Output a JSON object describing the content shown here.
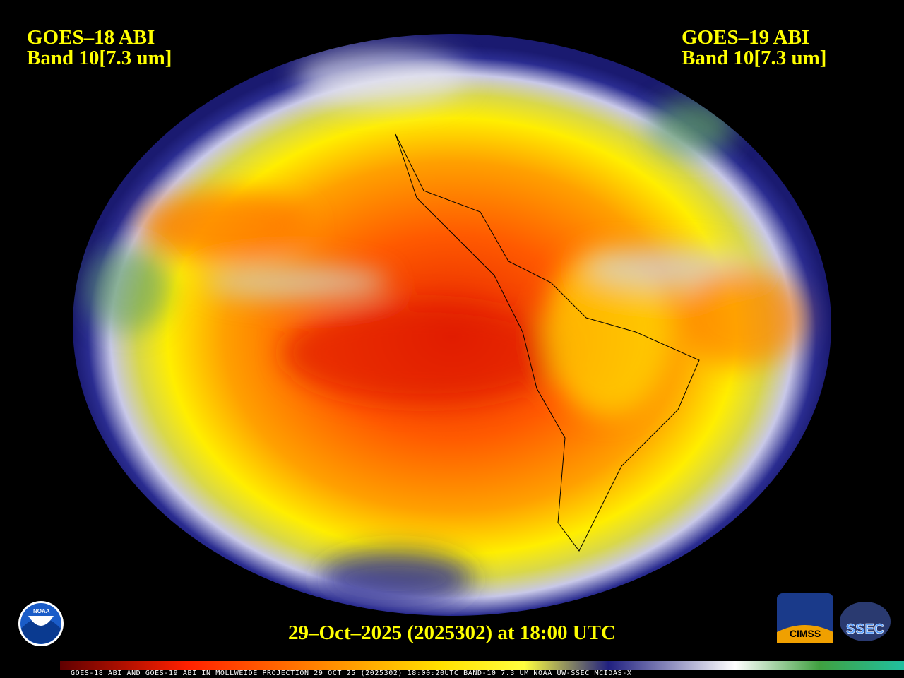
{
  "left_label": {
    "line1": "GOES–18 ABI",
    "line2": "Band 10[7.3 um]"
  },
  "right_label": {
    "line1": "GOES–19 ABI",
    "line2": "Band 10[7.3 um]"
  },
  "timestamp": "29–Oct–2025 (2025302) at 18:00 UTC",
  "caption": "GOES-18 ABI AND GOES-19 ABI IN MOLLWEIDE PROJECTION 29 OCT 25 (2025302) 18:00:20UTC BAND-10 7.3 UM NOAA UW-SSEC MCIDAS-X",
  "logos": {
    "noaa": "NOAA",
    "cimss": "CIMSS",
    "ssec": "SSEC"
  }
}
